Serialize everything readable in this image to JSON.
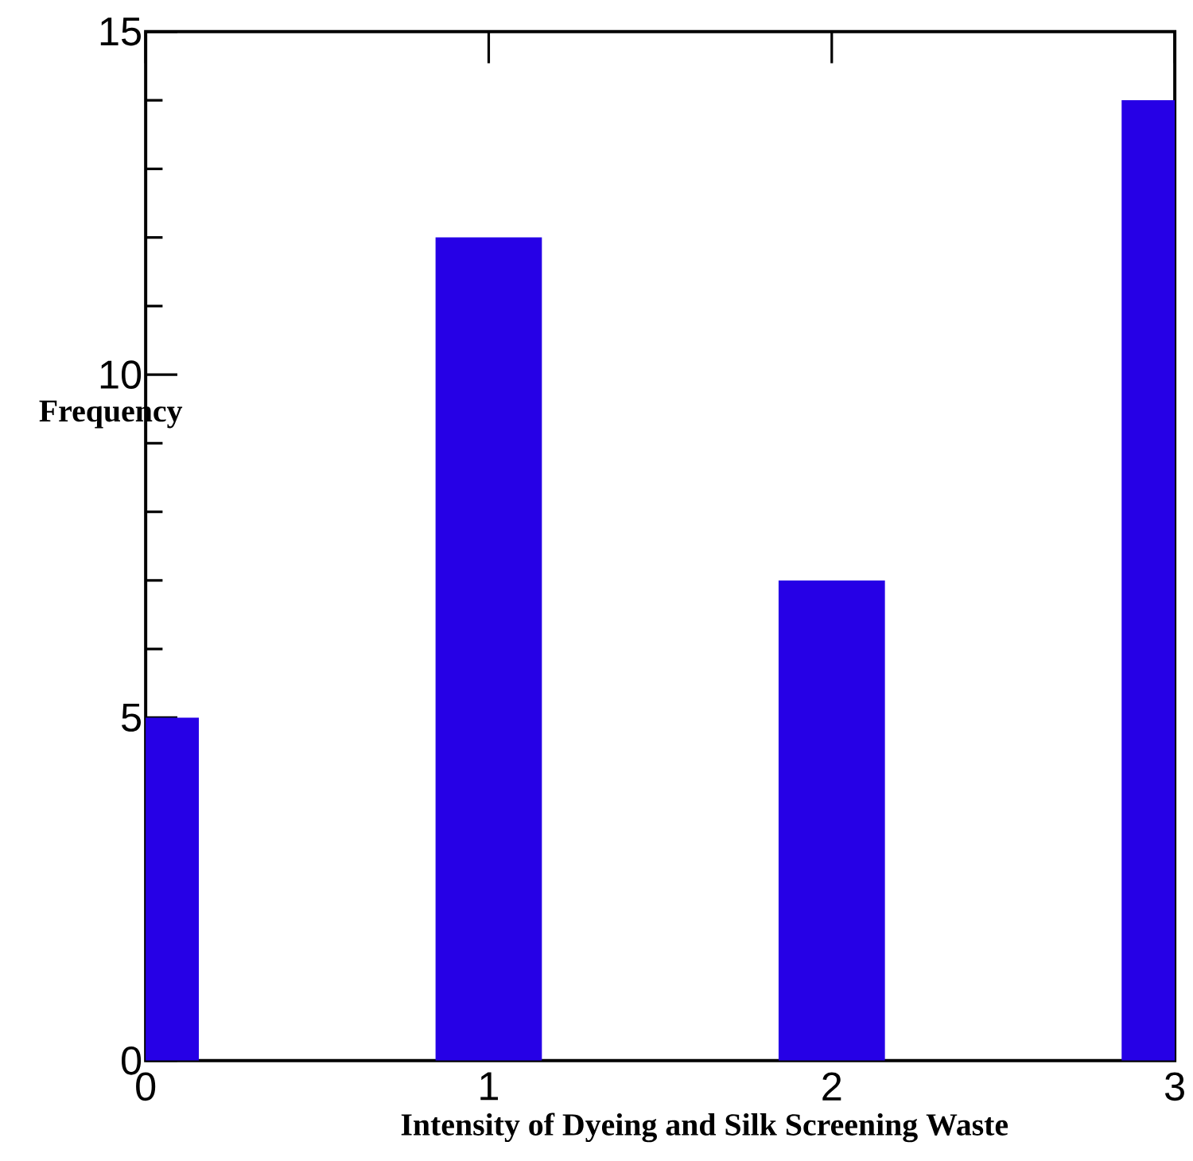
{
  "chart_data": {
    "type": "bar",
    "xlabel": "Intensity of Dyeing and Silk Screening Waste",
    "ylabel": "Frequency",
    "x": [
      0,
      1,
      2,
      3
    ],
    "values": [
      5,
      12,
      7,
      14
    ],
    "color": "#2600e6",
    "xlim": [
      0,
      3
    ],
    "xticks": [
      0,
      1,
      2,
      3
    ],
    "ylim": [
      0,
      15
    ],
    "yticks": [
      0,
      5,
      10,
      15
    ],
    "grid": false
  }
}
